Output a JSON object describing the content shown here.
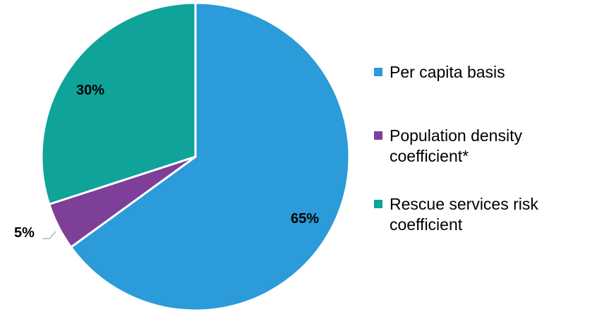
{
  "chart_data": {
    "type": "pie",
    "title": "",
    "slices": [
      {
        "label": "Per capita basis",
        "value": 65,
        "display": "65%",
        "color": "#2B9BD9"
      },
      {
        "label": "Population density coefficient*",
        "value": 5,
        "display": "5%",
        "color": "#7E3F98"
      },
      {
        "label": "Rescue services risk coefficient",
        "value": 30,
        "display": "30%",
        "color": "#0FA39A"
      }
    ],
    "legend": {
      "placement": "right",
      "items": [
        {
          "label": "Per capita basis",
          "color": "#2B9BD9"
        },
        {
          "label": "Population density coefficient*",
          "color": "#7E3F98"
        },
        {
          "label": "Rescue services risk coefficient",
          "color": "#0FA39A"
        }
      ]
    }
  }
}
